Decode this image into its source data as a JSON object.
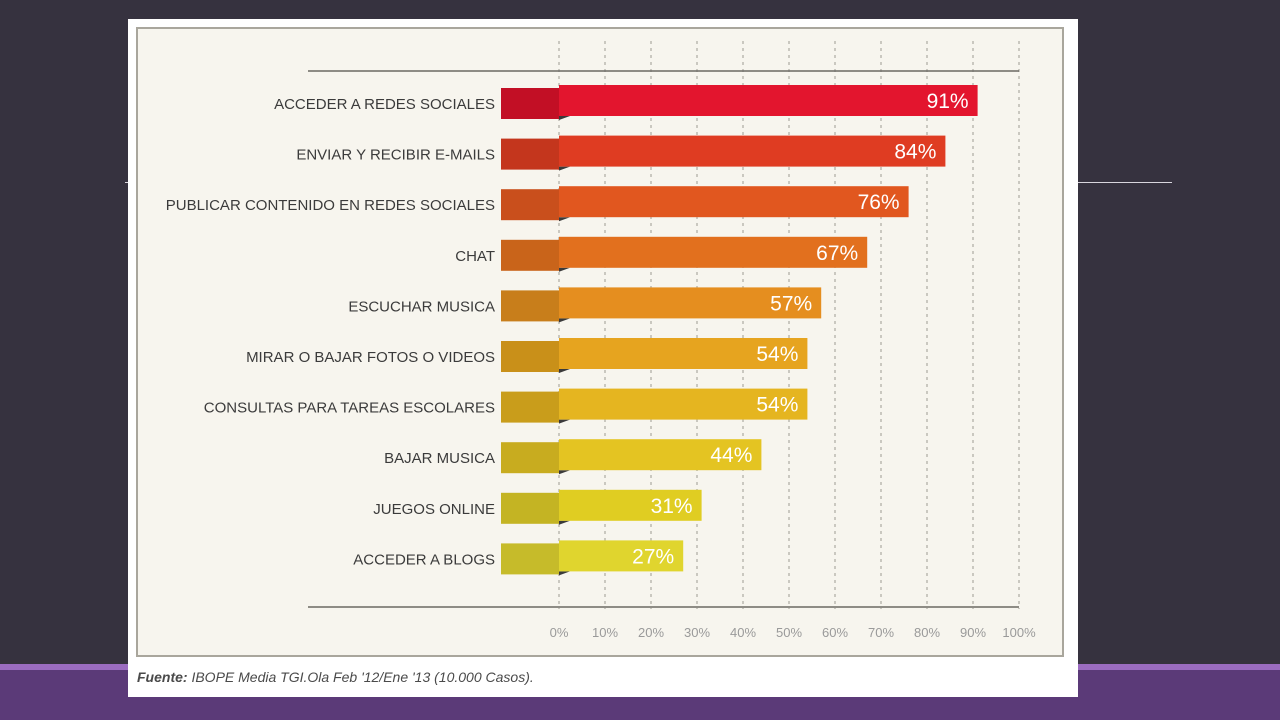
{
  "source": {
    "label": "Fuente:",
    "text": "IBOPE Media TGI.Ola Feb '12/Ene '13 (10.000 Casos)."
  },
  "chart_data": {
    "type": "bar",
    "orientation": "horizontal",
    "title": "",
    "xlabel": "",
    "ylabel": "",
    "xlim": [
      0,
      100
    ],
    "grid": true,
    "categories": [
      "ACCEDER A REDES SOCIALES",
      "ENVIAR Y RECIBIR E-MAILS",
      "PUBLICAR CONTENIDO EN REDES SOCIALES",
      "CHAT",
      "ESCUCHAR MUSICA",
      "MIRAR O BAJAR FOTOS O VIDEOS",
      "CONSULTAS PARA TAREAS ESCOLARES",
      "BAJAR MUSICA",
      "JUEGOS ONLINE",
      "ACCEDER A BLOGS"
    ],
    "values": [
      91,
      84,
      76,
      67,
      57,
      54,
      54,
      44,
      31,
      27
    ],
    "value_labels": [
      "91%",
      "84%",
      "76%",
      "67%",
      "57%",
      "54%",
      "54%",
      "44%",
      "31%",
      "27%"
    ],
    "ticks": [
      0,
      10,
      20,
      30,
      40,
      50,
      60,
      70,
      80,
      90,
      100
    ],
    "tick_labels": [
      "0%",
      "10%",
      "20%",
      "30%",
      "40%",
      "50%",
      "60%",
      "70%",
      "80%",
      "90%",
      "100%"
    ],
    "colors": [
      "#e3152e",
      "#df3c22",
      "#e1571f",
      "#e2701e",
      "#e58e1f",
      "#e6a41f",
      "#e5b520",
      "#e4c422",
      "#e0cd22",
      "#e0d52e"
    ],
    "tab_colors": [
      "#c20f25",
      "#c4361d",
      "#c94f1c",
      "#c9641a",
      "#c87e1b",
      "#c99019",
      "#c99d1b",
      "#c8ac1f",
      "#c4b423",
      "#c6bb2a"
    ]
  }
}
